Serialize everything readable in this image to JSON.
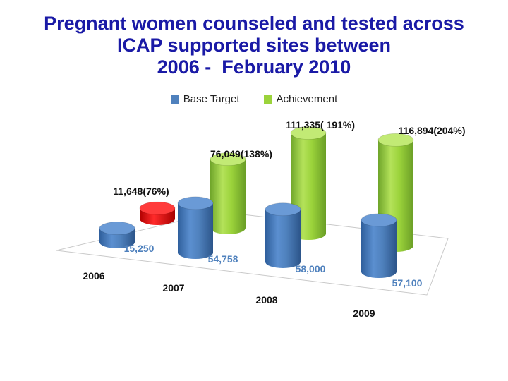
{
  "chart_data": {
    "type": "bar",
    "title_lines": [
      "Pregnant women counseled and tested across",
      "ICAP supported sites between",
      "2006 -  February 2010"
    ],
    "categories": [
      "2006",
      "2007",
      "2008",
      "2009"
    ],
    "series": [
      {
        "name": "Base Target",
        "values": [
          15250,
          54758,
          58000,
          57100
        ],
        "labels": [
          "15,250",
          "54,758",
          "58,000",
          "57,100"
        ],
        "color": "#4f81bd"
      },
      {
        "name": "Achievement",
        "values": [
          11648,
          76049,
          111335,
          116894
        ],
        "labels": [
          "11,648(76%)",
          "76,049(138%)",
          "111,335( 191%)",
          "116,894(204%)"
        ],
        "color": "#9bd33b"
      }
    ],
    "highlight": {
      "series": 1,
      "index": 0,
      "color": "#e81010"
    },
    "legend_position": "top-center",
    "style": "3d-cylinder",
    "ylim": [
      0,
      120000
    ]
  }
}
